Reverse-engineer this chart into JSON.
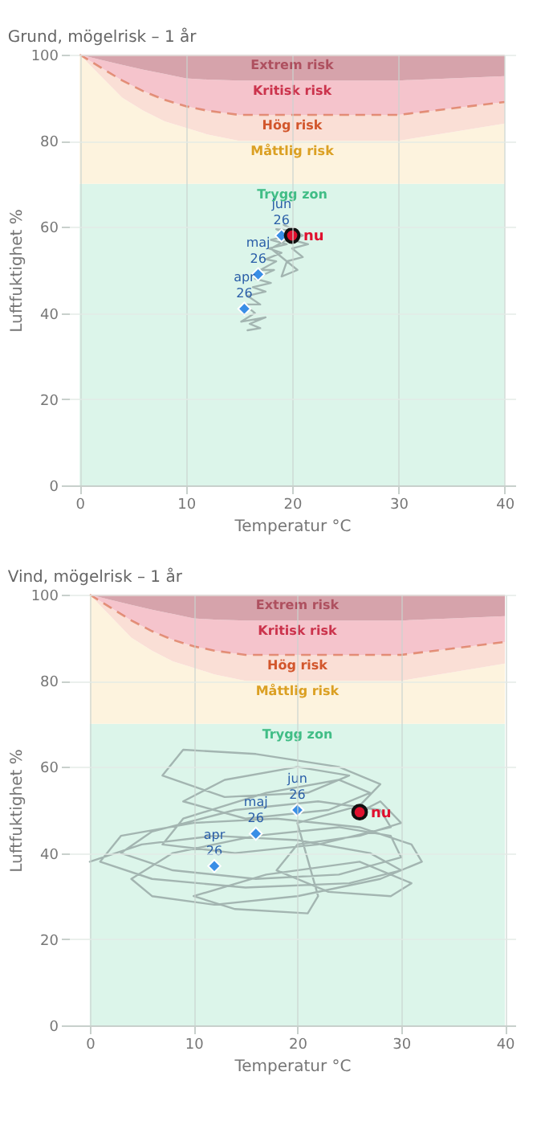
{
  "chart_data": [
    {
      "type": "line",
      "title": "Grund, mögelrisk – 1 år",
      "xlabel": "Temperatur °C",
      "ylabel": "Luftfuktighet %",
      "xlim": [
        -1,
        41
      ],
      "ylim": [
        0,
        100
      ],
      "xticks": [
        0,
        10,
        20,
        30,
        40
      ],
      "yticks": [
        0,
        20,
        40,
        60,
        80,
        100
      ],
      "grid": true,
      "stacked": true,
      "series": [
        {
          "type": "area",
          "name": "Trygg zon",
          "color": "#dcf5ea",
          "x": [
            0,
            2,
            4,
            6,
            8,
            10,
            12,
            15,
            20,
            25,
            30,
            35,
            40
          ],
          "values": [
            70,
            70,
            70,
            70,
            70,
            70,
            70,
            70,
            70,
            70,
            70,
            70,
            70
          ]
        },
        {
          "type": "area",
          "name": "Måttlig risk",
          "color": "#fdf3de",
          "x": [
            0,
            2,
            4,
            6,
            8,
            10,
            12,
            15,
            20,
            25,
            30,
            35,
            40
          ],
          "values": [
            30,
            25,
            20,
            17,
            14.5,
            13,
            11.5,
            10,
            10,
            10,
            10,
            12,
            14
          ]
        },
        {
          "type": "area",
          "name": "Hög risk",
          "color": "#fadfd6",
          "line_style": "dashed",
          "x": [
            0,
            2,
            4,
            6,
            8,
            10,
            12,
            15,
            20,
            25,
            30,
            35,
            40
          ],
          "values": [
            0,
            2,
            4,
            4.5,
            5,
            5,
            5.5,
            6,
            6,
            6,
            6,
            5.5,
            5
          ]
        },
        {
          "type": "area",
          "name": "Kritisk risk",
          "color": "#f5c4cc",
          "x": [
            0,
            2,
            4,
            6,
            8,
            10,
            12,
            15,
            20,
            25,
            30,
            35,
            40
          ],
          "values": [
            0,
            1.8,
            3.6,
            5,
            6,
            6.5,
            7.2,
            8,
            8,
            8,
            8,
            7,
            6
          ]
        },
        {
          "type": "area",
          "name": "Extrem risk",
          "color": "#d6a3ab",
          "x": [
            0,
            2,
            4,
            6,
            8,
            10,
            12,
            15,
            20,
            25,
            30,
            35,
            40
          ],
          "values": [
            0,
            1.2,
            2.4,
            3.5,
            4.5,
            5.5,
            5.8,
            6,
            6,
            6,
            6,
            5.5,
            5
          ]
        },
        {
          "line_style": "solid",
          "color": "#a3b5b1",
          "x": [
            15.8,
            17,
            16,
            17.5,
            15.2,
            16.5,
            15.5,
            17,
            15.8,
            17.5,
            16.3,
            18,
            16.5,
            18.3,
            17,
            18.5,
            17.5,
            19,
            17.8,
            19.5,
            18,
            19.8,
            18.5,
            20.5,
            19.2,
            21,
            20,
            21.5,
            20,
            21,
            19.5,
            20.5,
            19,
            19.5,
            18,
            19.5,
            20
          ],
          "values": [
            36,
            36.5,
            37.5,
            39,
            38,
            40,
            42,
            42,
            44,
            45,
            46,
            47,
            48,
            50,
            50,
            52,
            52.5,
            54,
            55,
            56,
            57,
            58,
            59.5,
            59,
            60.5,
            58,
            57,
            56,
            55,
            53,
            52,
            50,
            48.5,
            52,
            55,
            57,
            58
          ]
        },
        {
          "type": "scatter",
          "marker": "diamond",
          "color": "#3a8ee6",
          "x": [
            15.5,
            16.8,
            19
          ],
          "values": [
            41,
            49,
            58
          ],
          "value_labels": [
            "apr 26",
            "maj 26",
            "jun 26"
          ]
        },
        {
          "type": "scatter",
          "marker": "circle",
          "color": "#e0102e",
          "x": [
            20
          ],
          "values": [
            58
          ],
          "value_labels": [
            "nu"
          ]
        }
      ]
    },
    {
      "type": "line",
      "title": "Vind, mögelrisk – 1 år",
      "xlabel": "Temperatur °C",
      "ylabel": "Luftfuktighet %",
      "xlim": [
        -2,
        41
      ],
      "ylim": [
        0,
        100
      ],
      "xticks": [
        0,
        10,
        20,
        30,
        40
      ],
      "yticks": [
        0,
        20,
        40,
        60,
        80,
        100
      ],
      "grid": true,
      "stacked": true,
      "series": [
        {
          "type": "area",
          "name": "Trygg zon",
          "color": "#dcf5ea",
          "x": [
            0,
            2,
            4,
            6,
            8,
            10,
            12,
            15,
            20,
            25,
            30,
            35,
            40
          ],
          "values": [
            70,
            70,
            70,
            70,
            70,
            70,
            70,
            70,
            70,
            70,
            70,
            70,
            70
          ]
        },
        {
          "type": "area",
          "name": "Måttlig risk",
          "color": "#fdf3de",
          "x": [
            0,
            2,
            4,
            6,
            8,
            10,
            12,
            15,
            20,
            25,
            30,
            35,
            40
          ],
          "values": [
            30,
            25,
            20,
            17,
            14.5,
            13,
            11.5,
            10,
            10,
            10,
            10,
            12,
            14
          ]
        },
        {
          "type": "area",
          "name": "Hög risk",
          "color": "#fadfd6",
          "line_style": "dashed",
          "x": [
            0,
            2,
            4,
            6,
            8,
            10,
            12,
            15,
            20,
            25,
            30,
            35,
            40
          ],
          "values": [
            0,
            2,
            4,
            4.5,
            5,
            5,
            5.5,
            6,
            6,
            6,
            6,
            5.5,
            5
          ]
        },
        {
          "type": "area",
          "name": "Kritisk risk",
          "color": "#f5c4cc",
          "x": [
            0,
            2,
            4,
            6,
            8,
            10,
            12,
            15,
            20,
            25,
            30,
            35,
            40
          ],
          "values": [
            0,
            1.8,
            3.6,
            5,
            6,
            6.5,
            7.2,
            8,
            8,
            8,
            8,
            7,
            6
          ]
        },
        {
          "type": "area",
          "name": "Extrem risk",
          "color": "#d6a3ab",
          "x": [
            0,
            2,
            4,
            6,
            8,
            10,
            12,
            15,
            20,
            25,
            30,
            35,
            40
          ],
          "values": [
            0,
            1.2,
            2.4,
            3.5,
            4.5,
            5.5,
            5.8,
            6,
            6,
            6,
            6,
            5.5,
            5
          ]
        },
        {
          "line_style": "solid",
          "color": "#a3b5b1",
          "x": [
            0,
            5,
            12,
            20,
            27,
            30,
            25,
            15,
            6,
            1,
            3,
            10,
            18,
            26,
            31,
            32,
            28,
            20,
            12,
            6,
            4,
            8,
            16,
            24,
            29,
            30,
            24,
            16,
            8,
            3,
            6,
            14,
            22,
            28,
            29,
            22,
            14,
            7,
            9,
            17,
            24,
            27,
            23,
            15,
            9,
            13,
            20,
            25,
            21,
            13,
            7,
            9,
            16,
            24,
            28,
            26,
            20,
            22,
            21,
            14,
            10,
            17,
            26,
            31,
            29,
            23,
            18,
            20,
            26,
            30,
            28,
            26
          ],
          "values": [
            38,
            42,
            44,
            43,
            40,
            36,
            33,
            32,
            34,
            38,
            44,
            47,
            48,
            46,
            42,
            38,
            34,
            30,
            28,
            30,
            34,
            40,
            44,
            46,
            44,
            39,
            35,
            34,
            36,
            40,
            45,
            50,
            52,
            50,
            46,
            42,
            40,
            42,
            48,
            54,
            57,
            54,
            50,
            48,
            52,
            57,
            60,
            58,
            54,
            53,
            58,
            64,
            63,
            60,
            56,
            51,
            47,
            30,
            26,
            27,
            30,
            35,
            38,
            33,
            30,
            31,
            36,
            42,
            44,
            47,
            52,
            49.5
          ]
        },
        {
          "type": "scatter",
          "marker": "diamond",
          "color": "#3a8ee6",
          "x": [
            12,
            16,
            20
          ],
          "values": [
            37,
            44.5,
            50
          ],
          "value_labels": [
            "apr 26",
            "maj 26",
            "jun 26"
          ]
        },
        {
          "type": "scatter",
          "marker": "circle",
          "color": "#e0102e",
          "x": [
            26
          ],
          "values": [
            49.5
          ],
          "value_labels": [
            "nu"
          ]
        }
      ]
    }
  ]
}
